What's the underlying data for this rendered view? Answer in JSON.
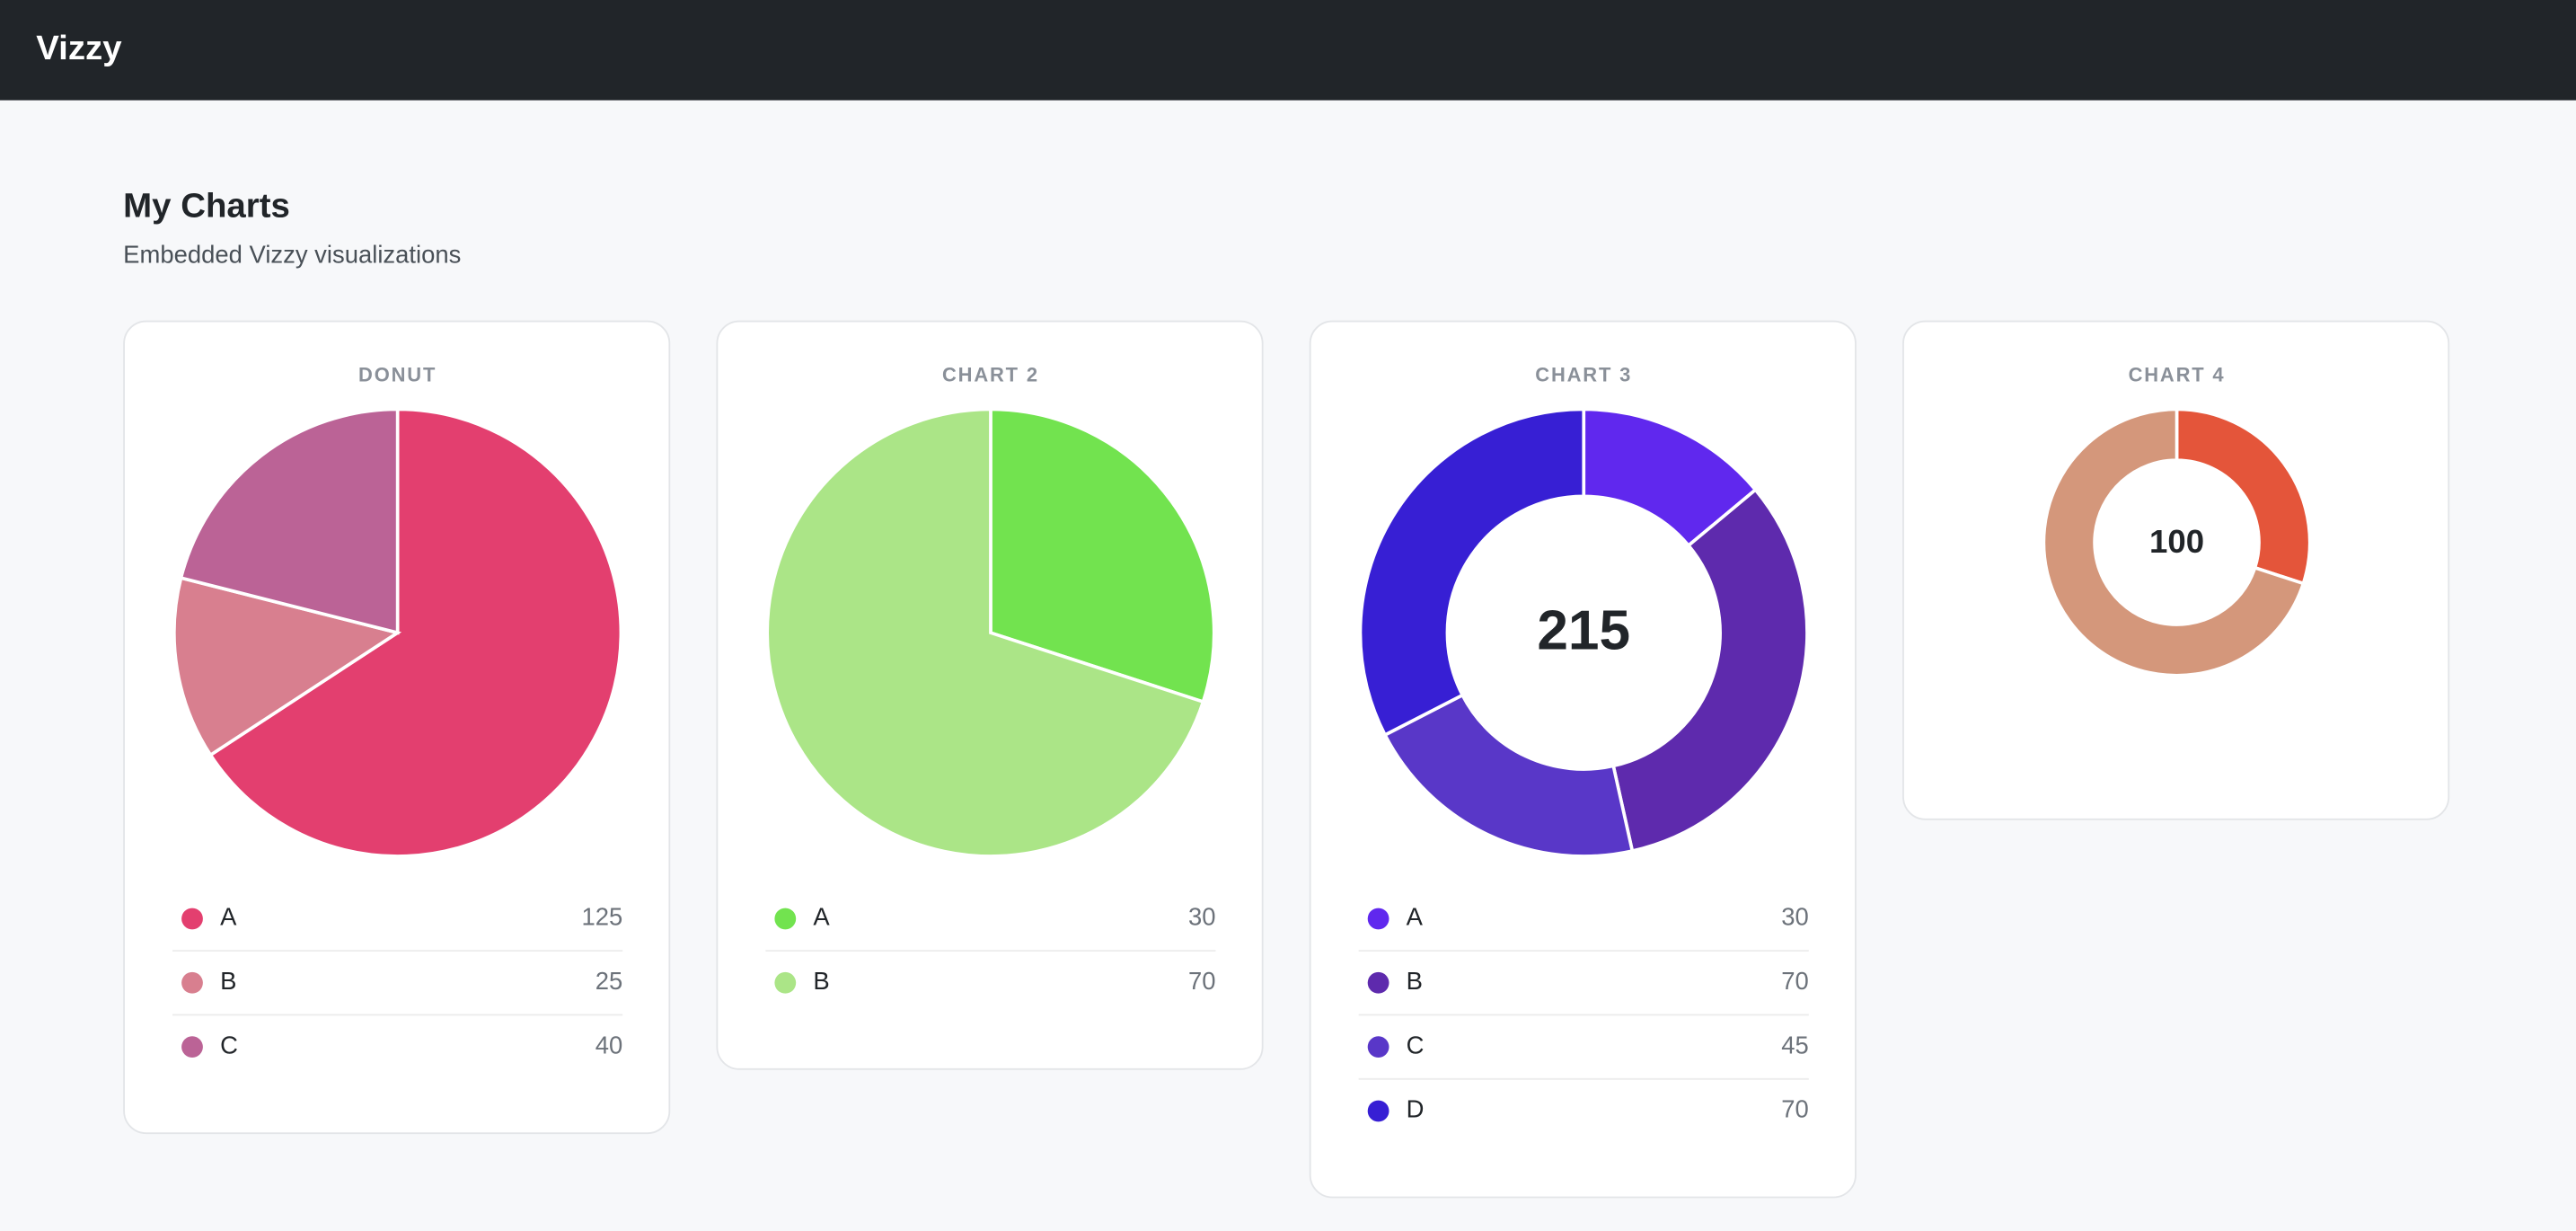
{
  "header": {
    "brand": "Vizzy"
  },
  "page": {
    "title": "My Charts",
    "subtitle": "Embedded Vizzy visualizations"
  },
  "chart_data": [
    {
      "type": "pie",
      "title": "DONUT",
      "categories": [
        "A",
        "B",
        "C"
      ],
      "values": [
        125,
        25,
        40
      ],
      "colors": [
        "#e33f6f",
        "#d87f8f",
        "#bb6396"
      ]
    },
    {
      "type": "pie",
      "title": "CHART 2",
      "categories": [
        "A",
        "B"
      ],
      "values": [
        30,
        70
      ],
      "colors": [
        "#72e34f",
        "#abe587"
      ]
    },
    {
      "type": "donut",
      "title": "CHART 3",
      "center_label": 215,
      "categories": [
        "A",
        "B",
        "C",
        "D"
      ],
      "values": [
        30,
        70,
        45,
        70
      ],
      "colors": [
        "#6028ee",
        "#5e2aad",
        "#5937c8",
        "#371fd4"
      ]
    },
    {
      "type": "donut",
      "title": "CHART 4",
      "center_label": 100,
      "categories": [
        null,
        null
      ],
      "values": [
        30,
        70
      ],
      "colors": [
        "#e4553a",
        "#d4977b"
      ],
      "small": true
    }
  ]
}
